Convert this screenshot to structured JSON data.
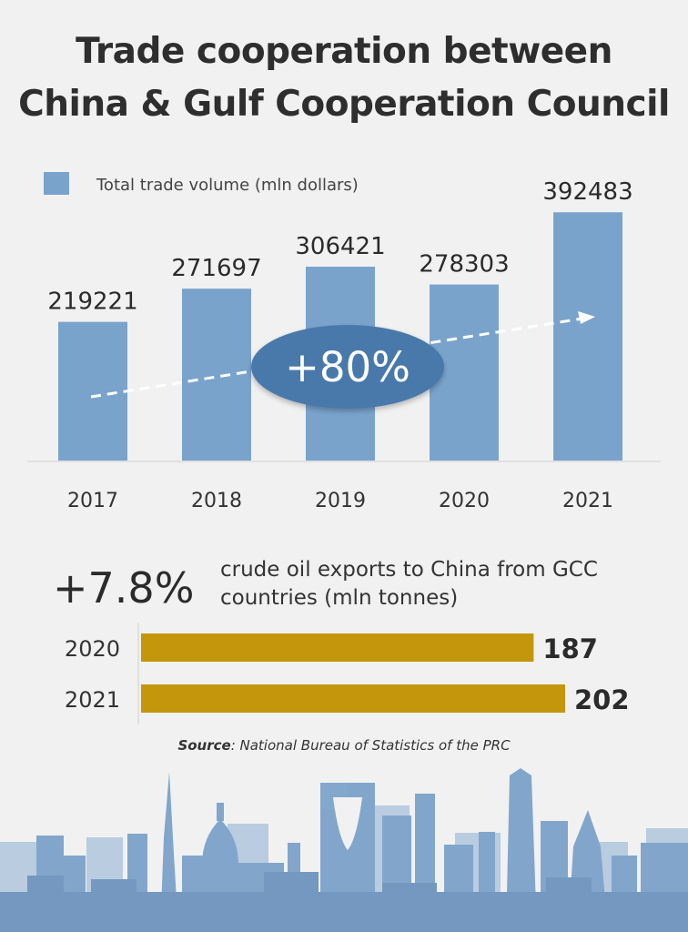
{
  "title": {
    "line1": "Trade cooperation between",
    "line2": "China & Gulf Cooperation Council"
  },
  "colors": {
    "bar": "#7aa3cc",
    "oil_bar": "#c3960b",
    "oval": "#4a79aa",
    "skyline": "#7da2c9"
  },
  "chart_data": [
    {
      "type": "bar",
      "legend": "Total trade volume (mln dollars)",
      "categories": [
        "2017",
        "2018",
        "2019",
        "2020",
        "2021"
      ],
      "values": [
        219221,
        271697,
        306421,
        278303,
        392483
      ],
      "ylim": [
        0,
        400000
      ],
      "annotation": "+80%",
      "grid": false,
      "legend_position": "top-left"
    },
    {
      "type": "bar",
      "orientation": "horizontal",
      "headline": "+7.8%",
      "description_line1": "crude oil exports to China from GCC",
      "description_line2": "countries (mln tonnes)",
      "categories": [
        "2020",
        "2021"
      ],
      "values": [
        187,
        202
      ],
      "xlim": [
        0,
        202
      ]
    }
  ],
  "source": {
    "label": "Source",
    "text": ": National Bureau of Statistics of the PRC"
  }
}
